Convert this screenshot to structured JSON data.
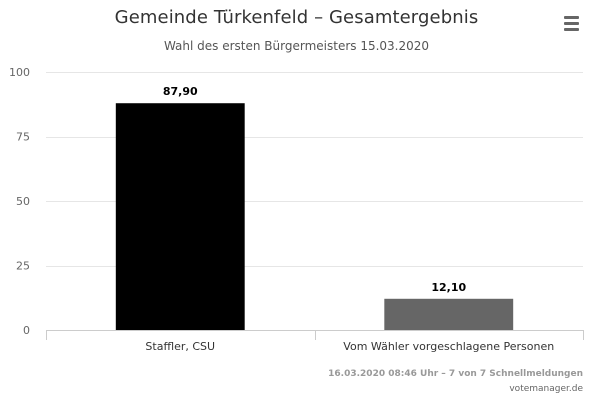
{
  "header": {
    "menu_icon": "hamburger-menu-icon"
  },
  "footer": {
    "credit": "16.03.2020 08:46 Uhr – 7 von 7 Schnellmeldungen",
    "brand": "votemanager.de"
  },
  "chart_data": {
    "type": "bar",
    "title": "Gemeinde Türkenfeld – Gesamtergebnis",
    "subtitle": "Wahl des ersten Bürgermeisters 15.03.2020",
    "categories": [
      "Staffler, CSU",
      "Vom Wähler vorgeschlagene Personen"
    ],
    "values": [
      87.9,
      12.1
    ],
    "data_labels": [
      "87,90",
      "12,10"
    ],
    "colors": [
      "#000000",
      "#666666"
    ],
    "ylim": [
      0,
      100
    ],
    "yticks": [
      0,
      25,
      50,
      75,
      100
    ],
    "xlabel": "",
    "ylabel": "",
    "grid": true,
    "legend": "none"
  }
}
